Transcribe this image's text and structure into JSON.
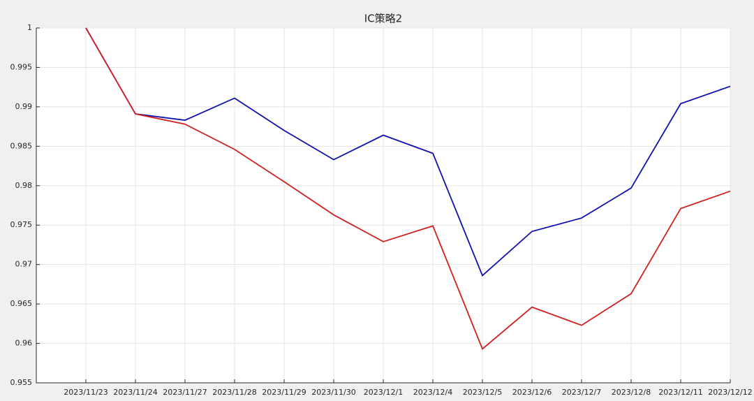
{
  "chart_data": {
    "type": "line",
    "title": "IC策略2",
    "categories": [
      "2023/11/23",
      "2023/11/24",
      "2023/11/27",
      "2023/11/28",
      "2023/11/29",
      "2023/11/30",
      "2023/12/1",
      "2023/12/4",
      "2023/12/5",
      "2023/12/6",
      "2023/12/7",
      "2023/12/8",
      "2023/12/11",
      "2023/12/12"
    ],
    "series": [
      {
        "color": "#1010b0",
        "values": [
          1.0,
          0.9891,
          0.9883,
          0.9911,
          0.987,
          0.9833,
          0.9864,
          0.9841,
          0.9686,
          0.9742,
          0.9759,
          0.9797,
          0.9904,
          0.9926
        ]
      },
      {
        "color": "#d02020",
        "values": [
          1.0,
          0.9891,
          0.9878,
          0.9846,
          0.9805,
          0.9763,
          0.9729,
          0.9749,
          0.9593,
          0.9646,
          0.9623,
          0.9663,
          0.9771,
          0.9793
        ]
      }
    ],
    "ylim": [
      0.955,
      1
    ],
    "yticks": [
      0.955,
      0.96,
      0.965,
      0.97,
      0.975,
      0.98,
      0.985,
      0.99,
      0.995,
      1
    ],
    "grid": true
  }
}
